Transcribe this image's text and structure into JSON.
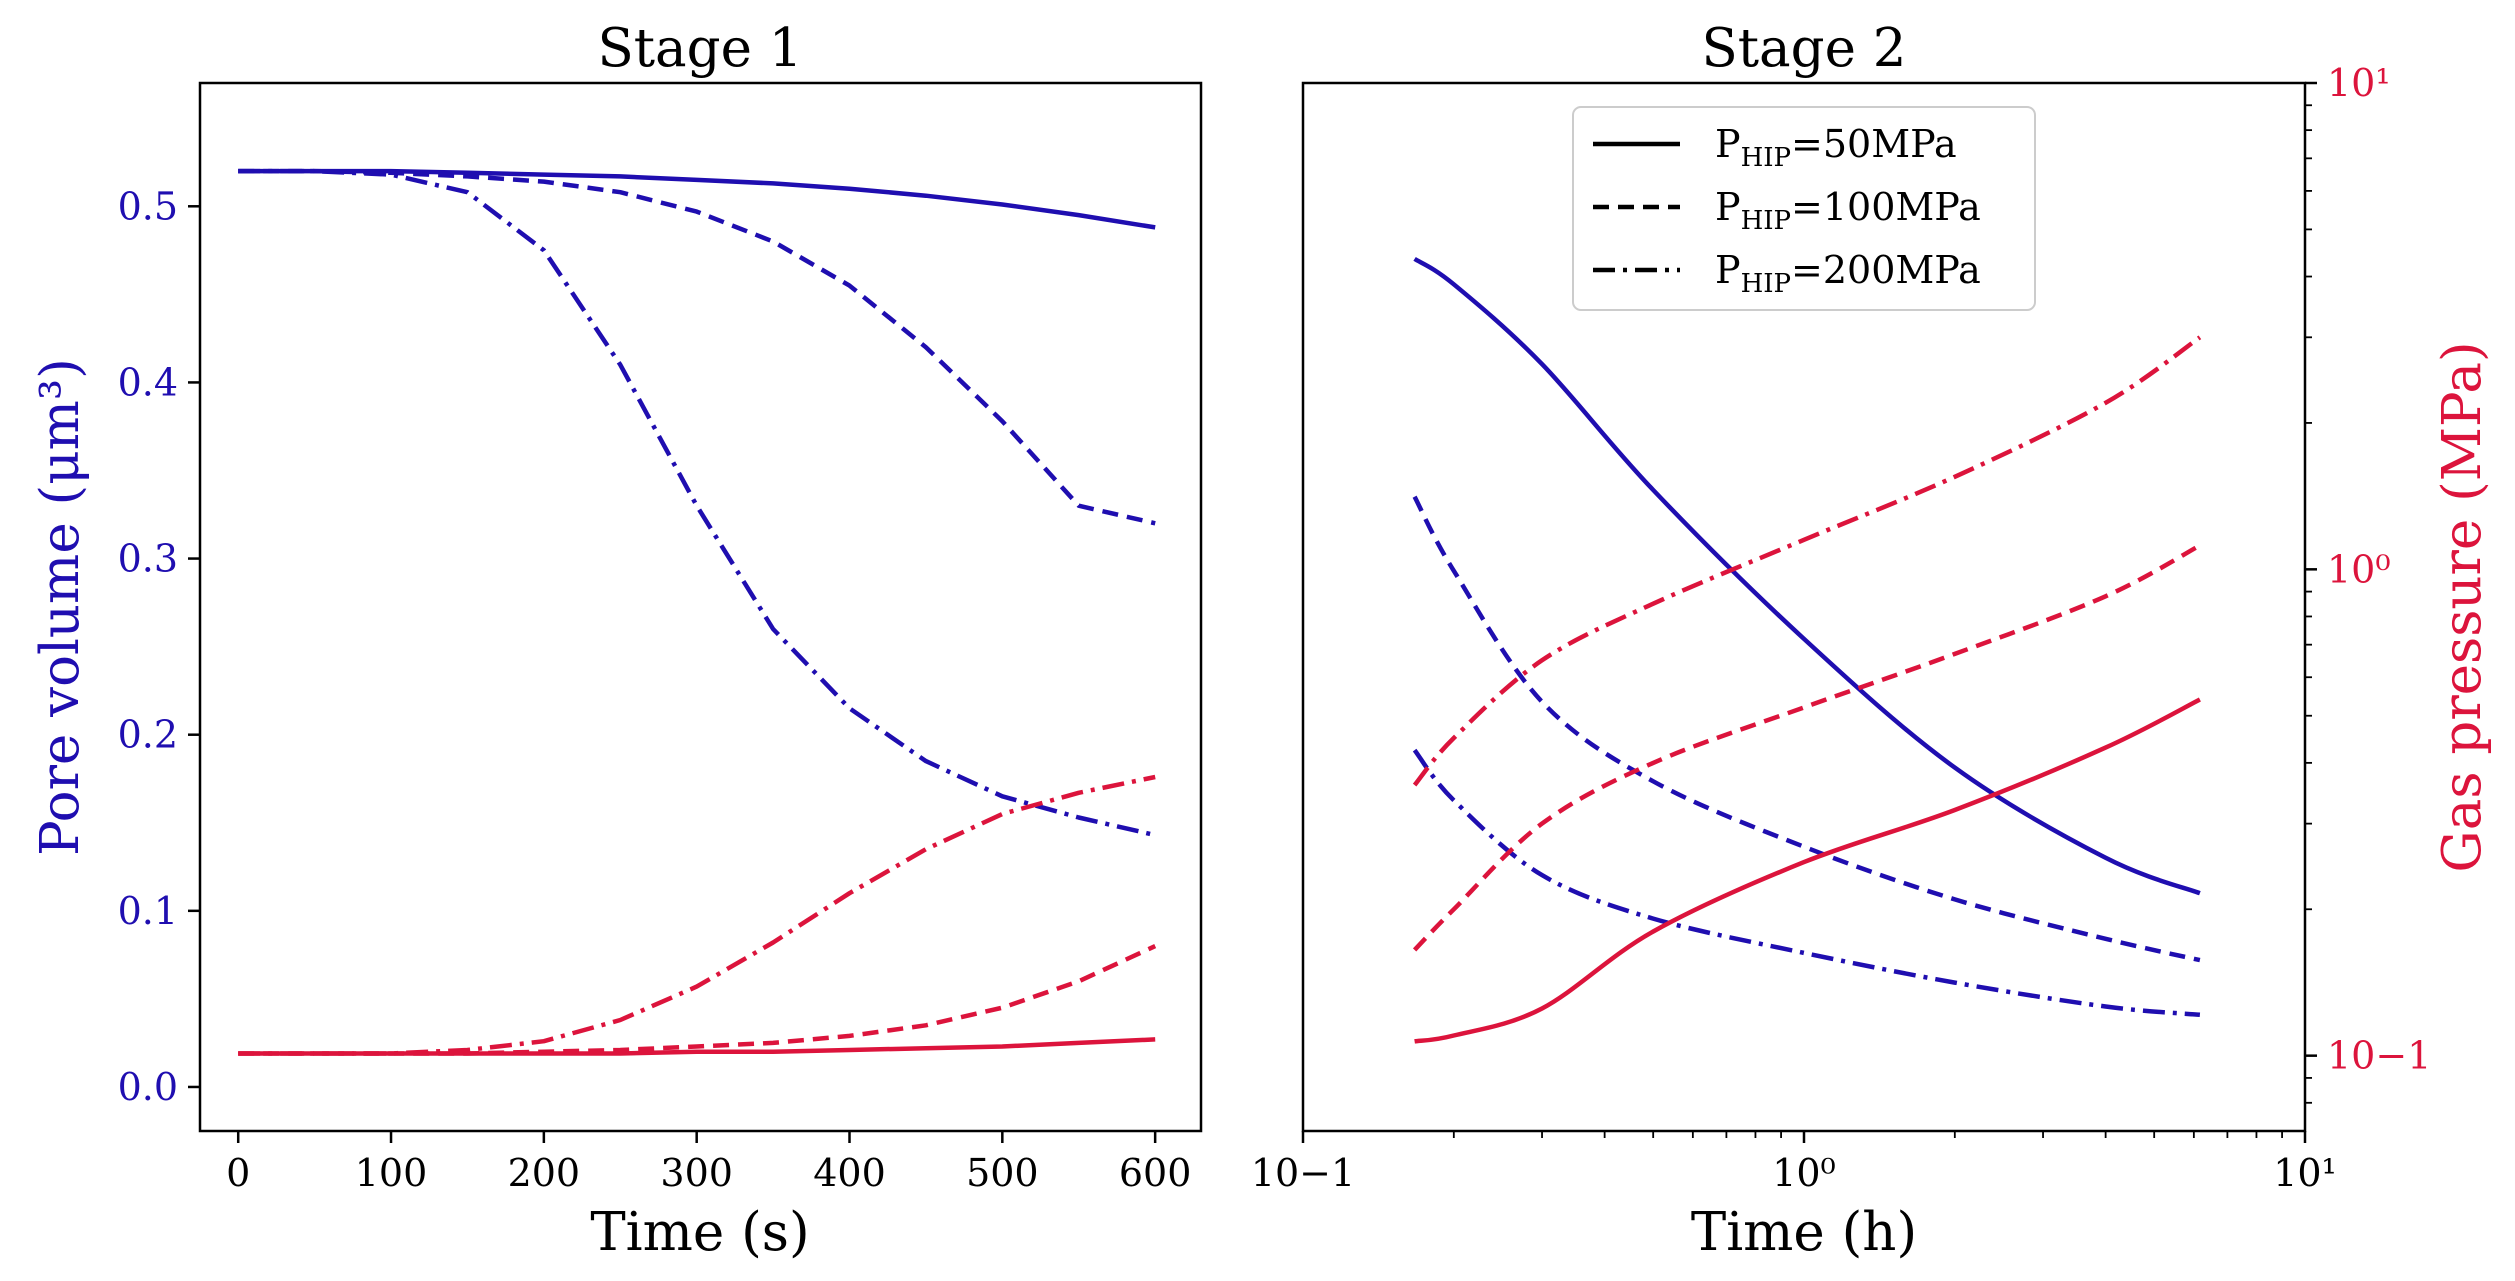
{
  "colors": {
    "volume": "#1f0eb0",
    "pressure": "#dc143c",
    "axes": "#000000"
  },
  "chart_data": [
    {
      "type": "line",
      "title": "Stage 1",
      "xlabel": "Time (s)",
      "ylabel": "Pore volume (μm³)",
      "xlim": [
        -25,
        630
      ],
      "ylim": [
        -0.025,
        0.57
      ],
      "xticks": [
        0,
        100,
        200,
        300,
        400,
        500,
        600
      ],
      "xtick_labels": [
        "0",
        "100",
        "200",
        "300",
        "400",
        "500",
        "600"
      ],
      "yticks": [
        0.0,
        0.1,
        0.2,
        0.3,
        0.4,
        0.5
      ],
      "ytick_labels": [
        "0.0",
        "0.1",
        "0.2",
        "0.3",
        "0.4",
        "0.5"
      ],
      "x": [
        0,
        50,
        100,
        150,
        200,
        250,
        300,
        350,
        400,
        450,
        500,
        550,
        600
      ],
      "series": [
        {
          "name": "pore volume, P_HIP=50MPa",
          "quantity": "volume",
          "style": "solid",
          "values": [
            0.52,
            0.52,
            0.52,
            0.519,
            0.518,
            0.517,
            0.515,
            0.513,
            0.51,
            0.506,
            0.501,
            0.495,
            0.488
          ]
        },
        {
          "name": "pore volume, P_HIP=100MPa",
          "quantity": "volume",
          "style": "dashed",
          "values": [
            0.52,
            0.52,
            0.519,
            0.517,
            0.514,
            0.508,
            0.497,
            0.48,
            0.455,
            0.42,
            0.378,
            0.33,
            0.32
          ]
        },
        {
          "name": "pore volume, P_HIP=200MPa",
          "quantity": "volume",
          "style": "dashdot",
          "values": [
            0.52,
            0.52,
            0.518,
            0.508,
            0.475,
            0.41,
            0.33,
            0.26,
            0.215,
            0.185,
            0.165,
            0.153,
            0.143
          ]
        },
        {
          "name": "gas pressure, P_HIP=50MPa",
          "quantity": "pressure",
          "style": "solid",
          "values": [
            0.019,
            0.019,
            0.019,
            0.019,
            0.019,
            0.019,
            0.02,
            0.02,
            0.021,
            0.022,
            0.023,
            0.025,
            0.027
          ]
        },
        {
          "name": "gas pressure, P_HIP=100MPa",
          "quantity": "pressure",
          "style": "dashed",
          "values": [
            0.019,
            0.019,
            0.019,
            0.019,
            0.02,
            0.021,
            0.023,
            0.025,
            0.029,
            0.035,
            0.045,
            0.06,
            0.08
          ]
        },
        {
          "name": "gas pressure, P_HIP=200MPa",
          "quantity": "pressure",
          "style": "dashdot",
          "values": [
            0.019,
            0.019,
            0.019,
            0.021,
            0.026,
            0.038,
            0.057,
            0.082,
            0.11,
            0.135,
            0.155,
            0.167,
            0.176
          ]
        }
      ]
    },
    {
      "type": "line",
      "title": "Stage 2",
      "xlabel": "Time (h)",
      "ylabel_right": "Gas pressure (MPa)",
      "xscale": "log",
      "xlim": [
        0.1,
        10
      ],
      "ylim_left_pore_volume": [
        0.035,
        0.5
      ],
      "ylim_right": [
        0.07,
        10
      ],
      "yscale_right": "log",
      "xticks": [
        0.1,
        1,
        10
      ],
      "xtick_labels": [
        "10−1",
        "10⁰",
        "10¹"
      ],
      "yticks_right": [
        0.1,
        1,
        10
      ],
      "ytick_labels_right": [
        "10−1",
        "10⁰",
        "10¹"
      ],
      "legend_position": "top-center",
      "legend": [
        {
          "prefix": "P",
          "sub": "HIP",
          "suffix": "=50MPa",
          "style": "solid"
        },
        {
          "prefix": "P",
          "sub": "HIP",
          "suffix": "=100MPa",
          "style": "dashed"
        },
        {
          "prefix": "P",
          "sub": "HIP",
          "suffix": "=200MPa",
          "style": "dashdot"
        }
      ],
      "x": [
        0.167,
        0.2,
        0.3,
        0.5,
        1,
        2,
        4,
        6.17
      ],
      "series": [
        {
          "name": "pore volume, P_HIP=50MPa",
          "quantity": "volume",
          "axis": "left",
          "style": "solid",
          "values": [
            0.32,
            0.3,
            0.245,
            0.178,
            0.122,
            0.088,
            0.07,
            0.064
          ]
        },
        {
          "name": "pore volume, P_HIP=100MPa",
          "quantity": "volume",
          "axis": "left",
          "style": "dashed",
          "values": [
            0.175,
            0.145,
            0.104,
            0.085,
            0.072,
            0.063,
            0.057,
            0.054
          ]
        },
        {
          "name": "pore volume, P_HIP=200MPa",
          "quantity": "volume",
          "axis": "left",
          "style": "dashdot",
          "values": [
            0.092,
            0.081,
            0.067,
            0.06,
            0.055,
            0.051,
            0.048,
            0.047
          ]
        },
        {
          "name": "gas pressure, P_HIP=50MPa",
          "quantity": "pressure",
          "axis": "right",
          "style": "solid",
          "values": [
            0.107,
            0.11,
            0.125,
            0.18,
            0.25,
            0.32,
            0.43,
            0.54
          ]
        },
        {
          "name": "gas pressure, P_HIP=100MPa",
          "quantity": "pressure",
          "axis": "right",
          "style": "dashed",
          "values": [
            0.165,
            0.2,
            0.3,
            0.4,
            0.52,
            0.67,
            0.88,
            1.12
          ]
        },
        {
          "name": "gas pressure, P_HIP=200MPa",
          "quantity": "pressure",
          "axis": "right",
          "style": "dashdot",
          "values": [
            0.36,
            0.45,
            0.65,
            0.85,
            1.15,
            1.55,
            2.2,
            3.0
          ]
        }
      ]
    }
  ]
}
